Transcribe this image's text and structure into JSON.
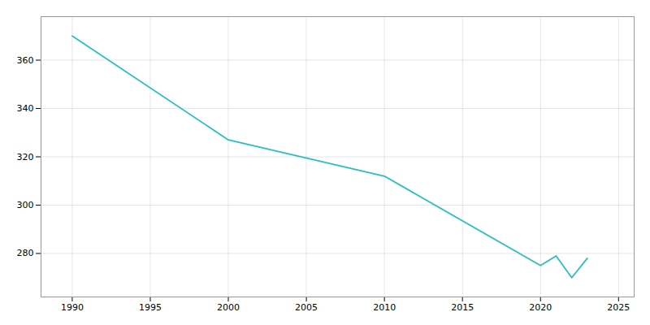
{
  "chart_data": {
    "type": "line",
    "x": [
      1990,
      2000,
      2010,
      2020,
      2021,
      2022,
      2023
    ],
    "values": [
      370,
      327,
      312,
      275,
      279,
      270,
      278
    ],
    "color": "#29BFBF",
    "xlim": [
      1988,
      2026
    ],
    "xticks": [
      1990,
      1995,
      2000,
      2005,
      2010,
      2015,
      2020,
      2025
    ],
    "ylim": [
      262,
      378
    ],
    "yticks": [
      280,
      300,
      320,
      340,
      360
    ],
    "grid": true
  }
}
